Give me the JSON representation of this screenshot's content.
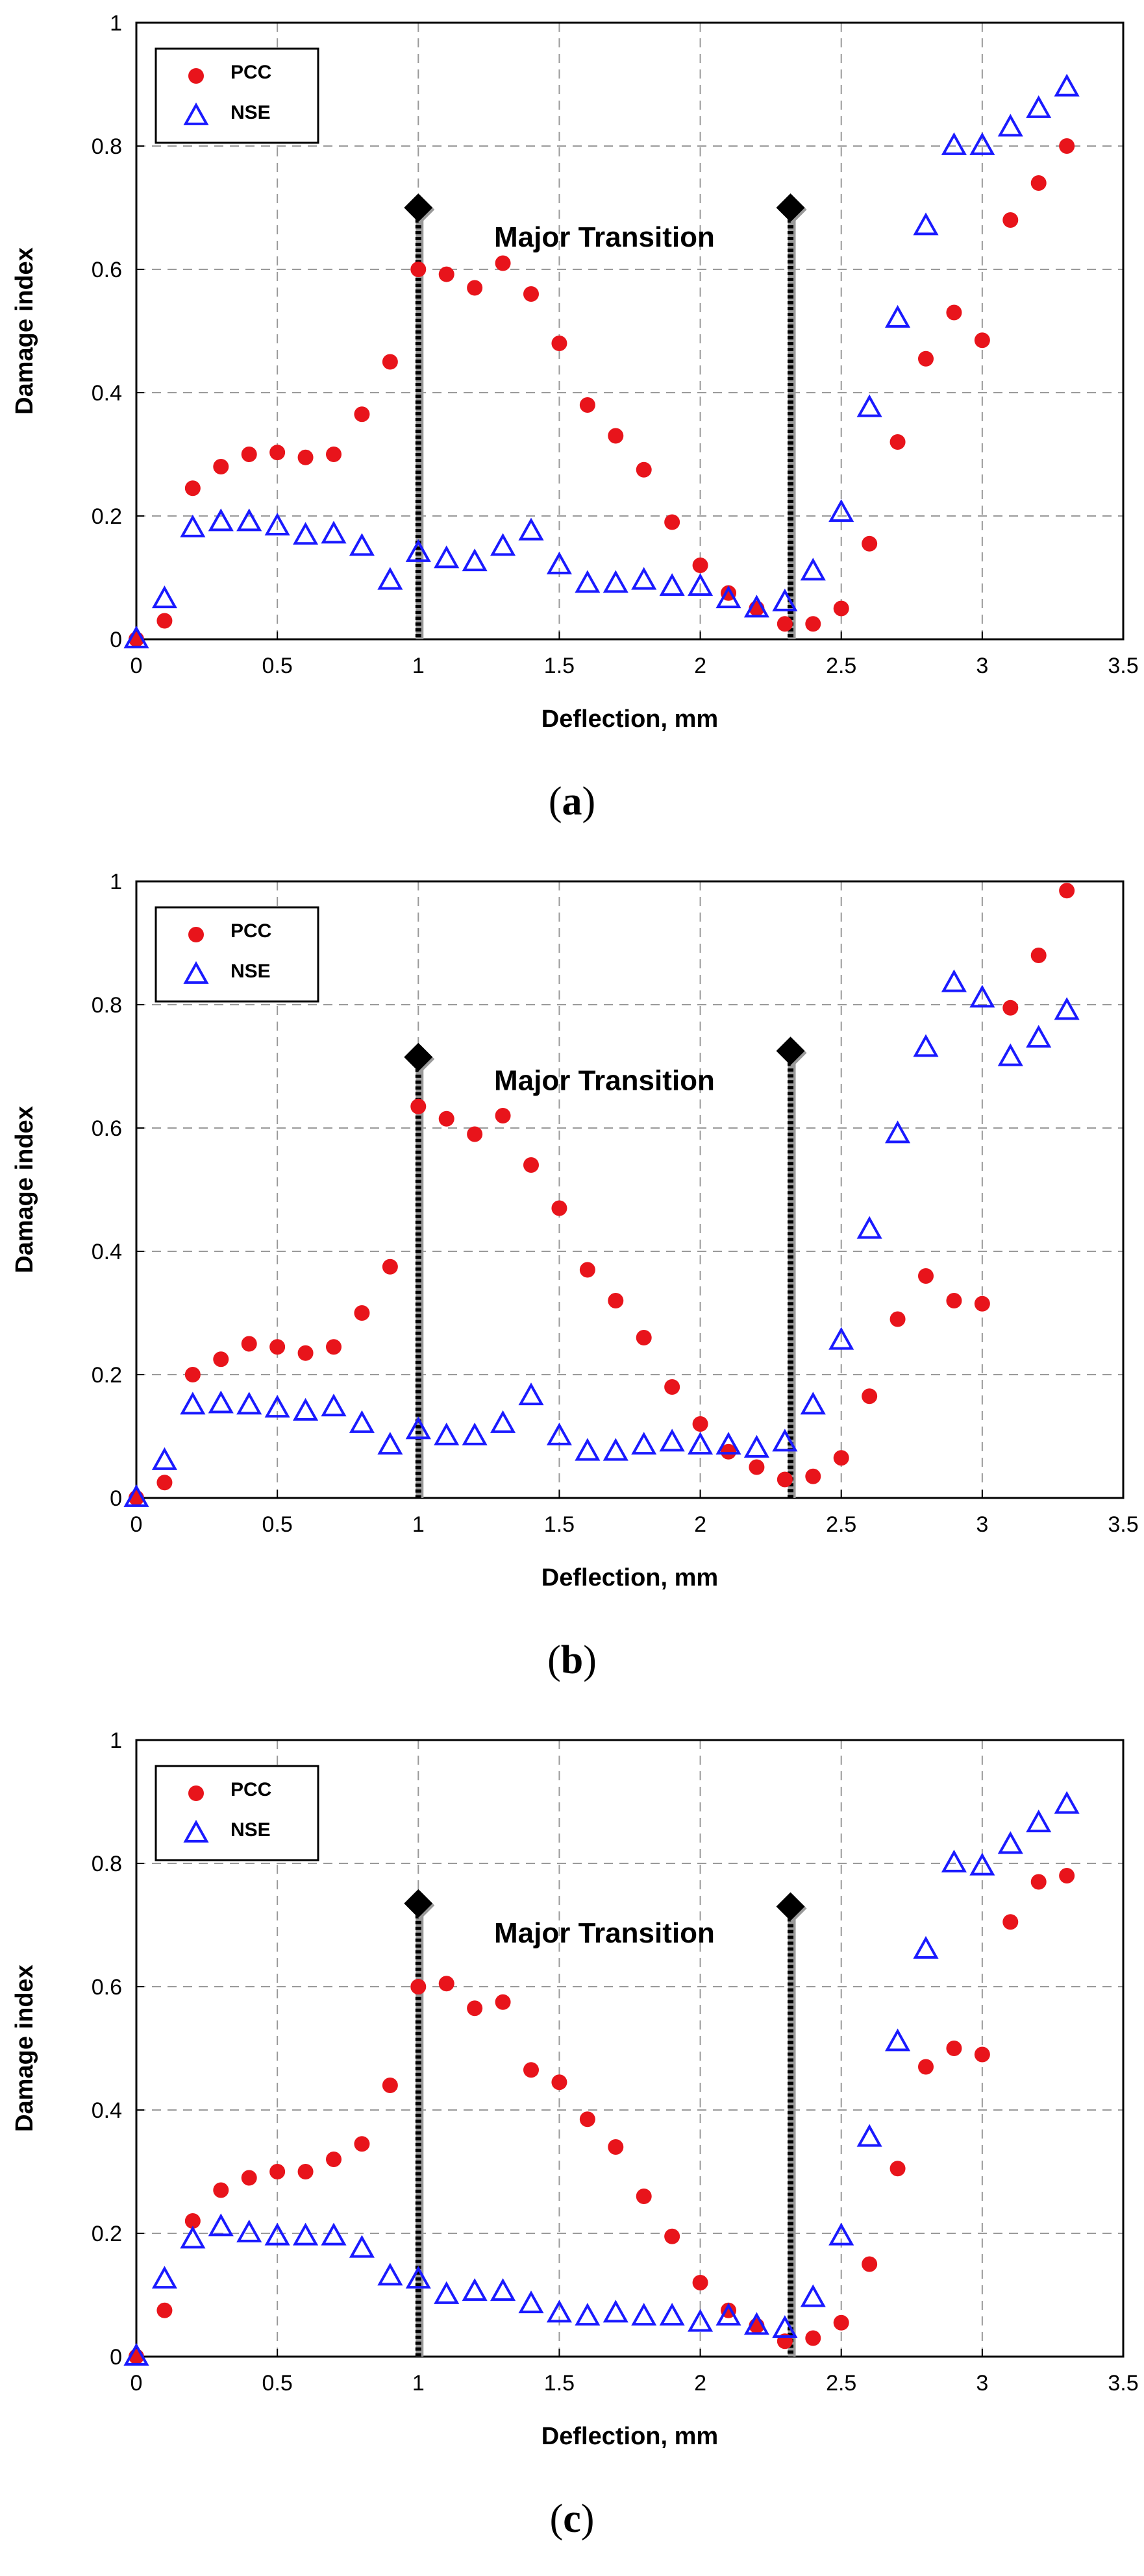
{
  "chart_data": [
    {
      "type": "scatter",
      "panel": "a",
      "caption_open": "(",
      "caption_letter": "a",
      "caption_close": ")",
      "xlabel": "Deflection, mm",
      "ylabel": "Damage index",
      "xlim": [
        0,
        3.5
      ],
      "ylim": [
        0,
        1
      ],
      "xticks": [
        0,
        0.5,
        1,
        1.5,
        2,
        2.5,
        3,
        3.5
      ],
      "xtick_labels": [
        "0",
        "0.5",
        "1",
        "1.5",
        "2",
        "2.5",
        "3",
        "3.5"
      ],
      "yticks": [
        0,
        0.2,
        0.4,
        0.6,
        0.8,
        1
      ],
      "ytick_labels": [
        "0",
        "0.2",
        "0.4",
        "0.6",
        "0.8",
        "1"
      ],
      "grid": true,
      "legend_position": "top-left",
      "annotation": "Major Transition",
      "transition_lines": [
        {
          "x": 1.0,
          "y": 0.7
        },
        {
          "x": 2.32,
          "y": 0.7
        }
      ],
      "series": [
        {
          "name": "PCC",
          "marker": "circle",
          "color": "#e8141b",
          "x": [
            0.0,
            0.1,
            0.2,
            0.3,
            0.4,
            0.5,
            0.6,
            0.7,
            0.8,
            0.9,
            1.0,
            1.1,
            1.2,
            1.3,
            1.4,
            1.5,
            1.6,
            1.7,
            1.8,
            1.9,
            2.0,
            2.1,
            2.2,
            2.3,
            2.4,
            2.5,
            2.6,
            2.7,
            2.8,
            2.9,
            3.0,
            3.1,
            3.2,
            3.3
          ],
          "y": [
            0.0,
            0.03,
            0.245,
            0.28,
            0.3,
            0.303,
            0.295,
            0.3,
            0.365,
            0.45,
            0.6,
            0.592,
            0.57,
            0.61,
            0.56,
            0.48,
            0.38,
            0.33,
            0.275,
            0.19,
            0.12,
            0.075,
            0.05,
            0.025,
            0.025,
            0.05,
            0.155,
            0.32,
            0.455,
            0.53,
            0.485,
            0.68,
            0.74,
            0.8
          ]
        },
        {
          "name": "NSE",
          "marker": "triangle",
          "color": "#1a1aff",
          "x": [
            0.0,
            0.1,
            0.2,
            0.3,
            0.4,
            0.5,
            0.6,
            0.7,
            0.8,
            0.9,
            1.0,
            1.1,
            1.2,
            1.3,
            1.4,
            1.5,
            1.6,
            1.7,
            1.8,
            1.9,
            2.0,
            2.1,
            2.2,
            2.3,
            2.4,
            2.5,
            2.6,
            2.7,
            2.8,
            2.9,
            3.0,
            3.1,
            3.2,
            3.3
          ],
          "y": [
            0.0,
            0.065,
            0.18,
            0.19,
            0.19,
            0.183,
            0.168,
            0.17,
            0.15,
            0.095,
            0.14,
            0.13,
            0.125,
            0.15,
            0.175,
            0.12,
            0.09,
            0.09,
            0.095,
            0.085,
            0.085,
            0.065,
            0.05,
            0.06,
            0.11,
            0.205,
            0.375,
            0.52,
            0.67,
            0.8,
            0.8,
            0.83,
            0.86,
            0.895
          ]
        }
      ]
    },
    {
      "type": "scatter",
      "panel": "b",
      "caption_open": "(",
      "caption_letter": "b",
      "caption_close": ")",
      "xlabel": "Deflection, mm",
      "ylabel": "Damage index",
      "xlim": [
        0,
        3.5
      ],
      "ylim": [
        0,
        1
      ],
      "xticks": [
        0,
        0.5,
        1,
        1.5,
        2,
        2.5,
        3,
        3.5
      ],
      "xtick_labels": [
        "0",
        "0.5",
        "1",
        "1.5",
        "2",
        "2.5",
        "3",
        "3.5"
      ],
      "yticks": [
        0,
        0.2,
        0.4,
        0.6,
        0.8,
        1
      ],
      "ytick_labels": [
        "0",
        "0.2",
        "0.4",
        "0.6",
        "0.8",
        "1"
      ],
      "grid": true,
      "legend_position": "top-left",
      "annotation": "Major Transition",
      "transition_lines": [
        {
          "x": 1.0,
          "y": 0.715
        },
        {
          "x": 2.32,
          "y": 0.725
        }
      ],
      "series": [
        {
          "name": "PCC",
          "marker": "circle",
          "color": "#e8141b",
          "x": [
            0.0,
            0.1,
            0.2,
            0.3,
            0.4,
            0.5,
            0.6,
            0.7,
            0.8,
            0.9,
            1.0,
            1.1,
            1.2,
            1.3,
            1.4,
            1.5,
            1.6,
            1.7,
            1.8,
            1.9,
            2.0,
            2.1,
            2.2,
            2.3,
            2.4,
            2.5,
            2.6,
            2.7,
            2.8,
            2.9,
            3.0,
            3.1,
            3.2,
            3.3
          ],
          "y": [
            0.0,
            0.025,
            0.2,
            0.225,
            0.25,
            0.245,
            0.235,
            0.245,
            0.3,
            0.375,
            0.635,
            0.615,
            0.59,
            0.62,
            0.54,
            0.47,
            0.37,
            0.32,
            0.26,
            0.18,
            0.12,
            0.075,
            0.05,
            0.03,
            0.035,
            0.065,
            0.165,
            0.29,
            0.36,
            0.32,
            0.315,
            0.795,
            0.88,
            0.985
          ]
        },
        {
          "name": "NSE",
          "marker": "triangle",
          "color": "#1a1aff",
          "x": [
            0.0,
            0.1,
            0.2,
            0.3,
            0.4,
            0.5,
            0.6,
            0.7,
            0.8,
            0.9,
            1.0,
            1.1,
            1.2,
            1.3,
            1.4,
            1.5,
            1.6,
            1.7,
            1.8,
            1.9,
            2.0,
            2.1,
            2.2,
            2.3,
            2.4,
            2.5,
            2.6,
            2.7,
            2.8,
            2.9,
            3.0,
            3.1,
            3.2,
            3.3
          ],
          "y": [
            0.0,
            0.06,
            0.15,
            0.152,
            0.15,
            0.145,
            0.14,
            0.147,
            0.12,
            0.085,
            0.11,
            0.1,
            0.1,
            0.12,
            0.165,
            0.1,
            0.075,
            0.075,
            0.085,
            0.09,
            0.085,
            0.085,
            0.08,
            0.09,
            0.15,
            0.255,
            0.435,
            0.59,
            0.73,
            0.835,
            0.81,
            0.715,
            0.745,
            0.79
          ]
        }
      ]
    },
    {
      "type": "scatter",
      "panel": "c",
      "caption_open": "(",
      "caption_letter": "c",
      "caption_close": ")",
      "xlabel": "Deflection, mm",
      "ylabel": "Damage index",
      "xlim": [
        0,
        3.5
      ],
      "ylim": [
        0,
        1
      ],
      "xticks": [
        0,
        0.5,
        1,
        1.5,
        2,
        2.5,
        3,
        3.5
      ],
      "xtick_labels": [
        "0",
        "0.5",
        "1",
        "1.5",
        "2",
        "2.5",
        "3",
        "3.5"
      ],
      "yticks": [
        0,
        0.2,
        0.4,
        0.6,
        0.8,
        1
      ],
      "ytick_labels": [
        "0",
        "0.2",
        "0.4",
        "0.6",
        "0.8",
        "1"
      ],
      "grid": true,
      "legend_position": "top-left",
      "annotation": "Major Transition",
      "transition_lines": [
        {
          "x": 1.0,
          "y": 0.735
        },
        {
          "x": 2.32,
          "y": 0.73
        }
      ],
      "series": [
        {
          "name": "PCC",
          "marker": "circle",
          "color": "#e8141b",
          "x": [
            0.0,
            0.1,
            0.2,
            0.3,
            0.4,
            0.5,
            0.6,
            0.7,
            0.8,
            0.9,
            1.0,
            1.1,
            1.2,
            1.3,
            1.4,
            1.5,
            1.6,
            1.7,
            1.8,
            1.9,
            2.0,
            2.1,
            2.2,
            2.3,
            2.4,
            2.5,
            2.6,
            2.7,
            2.8,
            2.9,
            3.0,
            3.1,
            3.2,
            3.3
          ],
          "y": [
            0.0,
            0.075,
            0.22,
            0.27,
            0.29,
            0.3,
            0.3,
            0.32,
            0.345,
            0.44,
            0.6,
            0.605,
            0.565,
            0.575,
            0.465,
            0.445,
            0.385,
            0.34,
            0.26,
            0.195,
            0.12,
            0.075,
            0.05,
            0.025,
            0.03,
            0.055,
            0.15,
            0.305,
            0.47,
            0.5,
            0.49,
            0.705,
            0.77,
            0.78
          ]
        },
        {
          "name": "NSE",
          "marker": "triangle",
          "color": "#1a1aff",
          "x": [
            0.0,
            0.1,
            0.2,
            0.3,
            0.4,
            0.5,
            0.6,
            0.7,
            0.8,
            0.9,
            1.0,
            1.1,
            1.2,
            1.3,
            1.4,
            1.5,
            1.6,
            1.7,
            1.8,
            1.9,
            2.0,
            2.1,
            2.2,
            2.3,
            2.4,
            2.5,
            2.6,
            2.7,
            2.8,
            2.9,
            3.0,
            3.1,
            3.2,
            3.3
          ],
          "y": [
            0.0,
            0.125,
            0.19,
            0.21,
            0.2,
            0.195,
            0.195,
            0.195,
            0.175,
            0.13,
            0.125,
            0.1,
            0.105,
            0.105,
            0.085,
            0.07,
            0.065,
            0.07,
            0.065,
            0.065,
            0.055,
            0.065,
            0.05,
            0.045,
            0.095,
            0.195,
            0.355,
            0.51,
            0.66,
            0.8,
            0.795,
            0.83,
            0.865,
            0.895
          ]
        }
      ]
    }
  ]
}
